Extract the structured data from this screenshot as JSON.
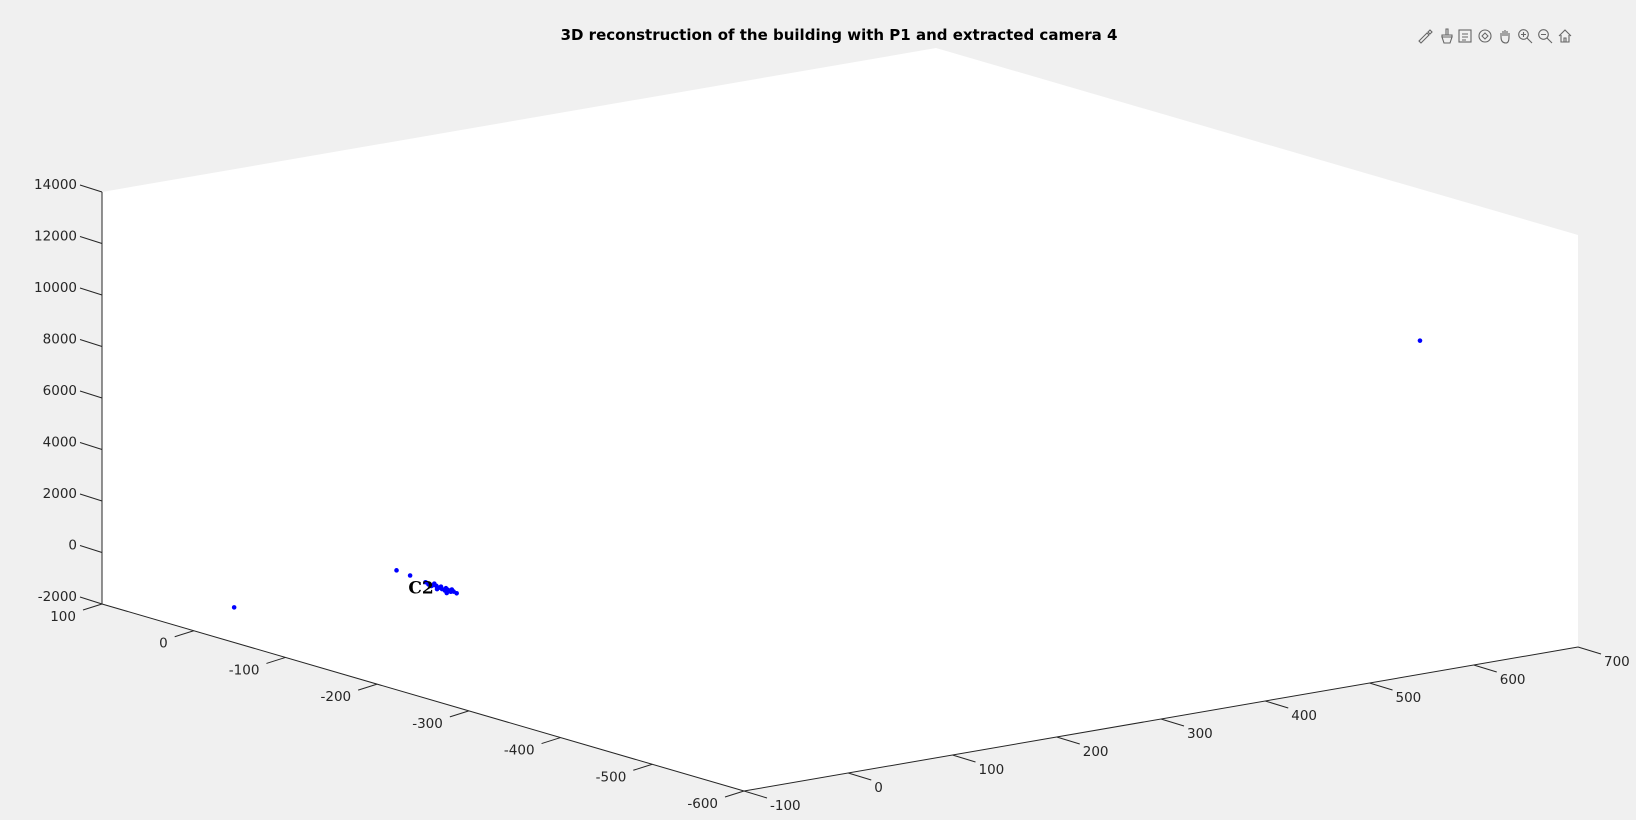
{
  "toolbar": [
    {
      "name": "edit-plot-icon",
      "label": "Edit"
    },
    {
      "name": "brush-icon",
      "label": "Brush"
    },
    {
      "name": "datatip-icon",
      "label": "Data Tips"
    },
    {
      "name": "rotate-3d-icon",
      "label": "Rotate 3D"
    },
    {
      "name": "pan-icon",
      "label": "Pan"
    },
    {
      "name": "zoom-in-icon",
      "label": "Zoom In"
    },
    {
      "name": "zoom-out-icon",
      "label": "Zoom Out"
    },
    {
      "name": "home-icon",
      "label": "Restore View"
    }
  ],
  "chart_data": {
    "type": "scatter",
    "title": "3D reconstruction of the building with P1 and extracted camera 4",
    "xlabel": "",
    "ylabel": "",
    "zlabel": "",
    "xlim": [
      -100,
      700
    ],
    "ylim": [
      -600,
      100
    ],
    "zlim": [
      -2000,
      14000
    ],
    "xticks": [
      -100,
      0,
      100,
      200,
      300,
      400,
      500,
      600,
      700
    ],
    "yticks": [
      100,
      0,
      -100,
      -200,
      -300,
      -400,
      -500,
      -600
    ],
    "zticks": [
      -2000,
      0,
      2000,
      4000,
      6000,
      8000,
      10000,
      12000,
      14000
    ],
    "grid": false,
    "color": "#0000ff",
    "points": [
      {
        "x": -70,
        "y": -10,
        "z": -1200
      },
      {
        "x": 40,
        "y": -62,
        "z": 10
      },
      {
        "x": 46,
        "y": -70,
        "z": -150
      },
      {
        "x": 52,
        "y": -80,
        "z": -350
      },
      {
        "x": 53,
        "y": -82,
        "z": -420
      },
      {
        "x": 54,
        "y": -84,
        "z": -470
      },
      {
        "x": 55,
        "y": -85,
        "z": -430
      },
      {
        "x": 56,
        "y": -85,
        "z": -380
      },
      {
        "x": 57,
        "y": -87,
        "z": -500
      },
      {
        "x": 58,
        "y": -88,
        "z": -520
      },
      {
        "x": 58,
        "y": -90,
        "z": -460
      },
      {
        "x": 59,
        "y": -90,
        "z": -560
      },
      {
        "x": 60,
        "y": -92,
        "z": -600
      },
      {
        "x": 61,
        "y": -92,
        "z": -520
      },
      {
        "x": 62,
        "y": -93,
        "z": -580
      },
      {
        "x": 63,
        "y": -95,
        "z": -640
      },
      {
        "x": 64,
        "y": -95,
        "z": -560
      },
      {
        "x": 64,
        "y": -97,
        "z": -620
      },
      {
        "x": 66,
        "y": -98,
        "z": -690
      },
      {
        "x": 56,
        "y": -88,
        "z": -560
      },
      {
        "x": 60,
        "y": -94,
        "z": -680
      },
      {
        "x": 57,
        "y": -86,
        "z": -460
      },
      {
        "x": 610,
        "y": -530,
        "z": 9800
      }
    ],
    "camera_label": {
      "text": "C2",
      "x": 45,
      "y": -78,
      "z": -450
    }
  }
}
